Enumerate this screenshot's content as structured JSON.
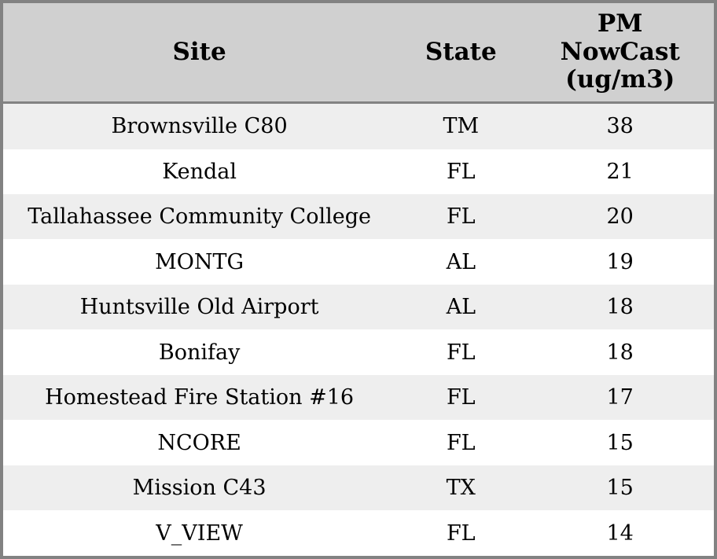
{
  "table": {
    "columns": [
      {
        "key": "site",
        "label": "Site"
      },
      {
        "key": "state",
        "label": "State"
      },
      {
        "key": "pm",
        "label": "PM\nNowCast\n(ug/m3)"
      }
    ],
    "rows": [
      {
        "site": "Brownsville C80",
        "state": "TM",
        "pm": "38"
      },
      {
        "site": "Kendal",
        "state": "FL",
        "pm": "21"
      },
      {
        "site": "Tallahassee Community College",
        "state": "FL",
        "pm": "20"
      },
      {
        "site": "MONTG",
        "state": "AL",
        "pm": "19"
      },
      {
        "site": "Huntsville Old Airport",
        "state": "AL",
        "pm": "18"
      },
      {
        "site": "Bonifay",
        "state": "FL",
        "pm": "18"
      },
      {
        "site": "Homestead Fire Station #16",
        "state": "FL",
        "pm": "17"
      },
      {
        "site": "NCORE",
        "state": "FL",
        "pm": "15"
      },
      {
        "site": "Mission C43",
        "state": "TX",
        "pm": "15"
      },
      {
        "site": "V_VIEW",
        "state": "FL",
        "pm": "14"
      }
    ]
  },
  "colors": {
    "outer_border": "#828282",
    "header_background": "#d0d0d0",
    "row_stripe": "#eeeeee",
    "row_plain": "#ffffff",
    "text": "#000000"
  }
}
